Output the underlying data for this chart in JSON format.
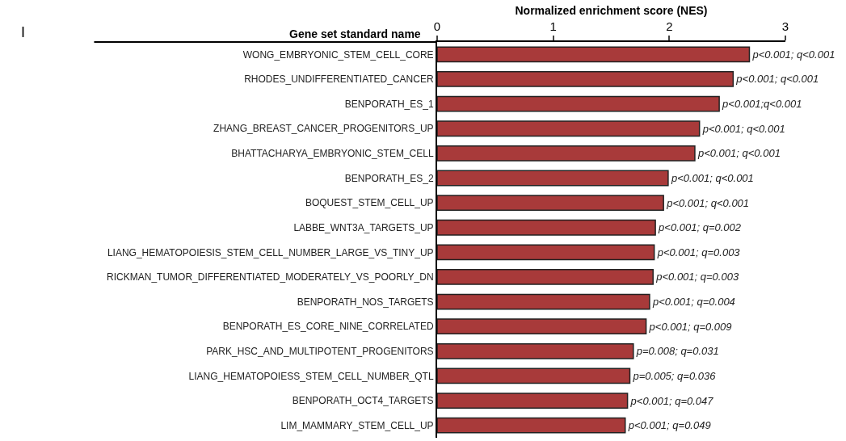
{
  "chart_data": {
    "type": "bar",
    "orientation": "horizontal",
    "xlabel": "Normalized enrichment score (NES)",
    "ylabel": "Gene set standard name",
    "annotations": [
      "I"
    ],
    "categories": [
      "WONG_EMBRYONIC_STEM_CELL_CORE",
      "RHODES_UNDIFFERENTIATED_CANCER",
      "BENPORATH_ES_1",
      "ZHANG_BREAST_CANCER_PROGENITORS_UP",
      "BHATTACHARYA_EMBRYONIC_STEM_CELL",
      "BENPORATH_ES_2",
      "BOQUEST_STEM_CELL_UP",
      "LABBE_WNT3A_TARGETS_UP",
      "LIANG_HEMATOPOIESIS_STEM_CELL_NUMBER_LARGE_VS_TINY_UP",
      "RICKMAN_TUMOR_DIFFERENTIATED_MODERATELY_VS_POORLY_DN",
      "BENPORATH_NOS_TARGETS",
      "BENPORATH_ES_CORE_NINE_CORRELATED",
      "PARK_HSC_AND_MULTIPOTENT_PROGENITORS",
      "LIANG_HEMATOPOIESS_STEM_CELL_NUMBER_QTL",
      "BENPORATH_OCT4_TARGETS",
      "LIM_MAMMARY_STEM_CELL_UP"
    ],
    "values": [
      2.69,
      2.55,
      2.43,
      2.26,
      2.22,
      1.99,
      1.95,
      1.88,
      1.87,
      1.86,
      1.83,
      1.8,
      1.69,
      1.66,
      1.64,
      1.62
    ],
    "value_labels": [
      "p<0.001; q<0.001",
      "p<0.001; q<0.001",
      "p<0.001;q<0.001",
      "p<0.001; q<0.001",
      "p<0.001; q<0.001",
      "p<0.001; q<0.001",
      "p<0.001; q<0.001",
      "p<0.001; q=0.002",
      "p<0.001; q=0.003",
      "p<0.001; q=0.003",
      "p<0.001; q=0.004",
      "p<0.001; q=0.009",
      "p=0.008; q=0.031",
      "p=0.005; q=0.036",
      "p<0.001; q=0.047",
      "p<0.001; q=0.049"
    ],
    "color": "#a83a3a",
    "xlim": [
      0,
      3
    ],
    "xticks": [
      0,
      1,
      2,
      3
    ],
    "legend": false
  }
}
